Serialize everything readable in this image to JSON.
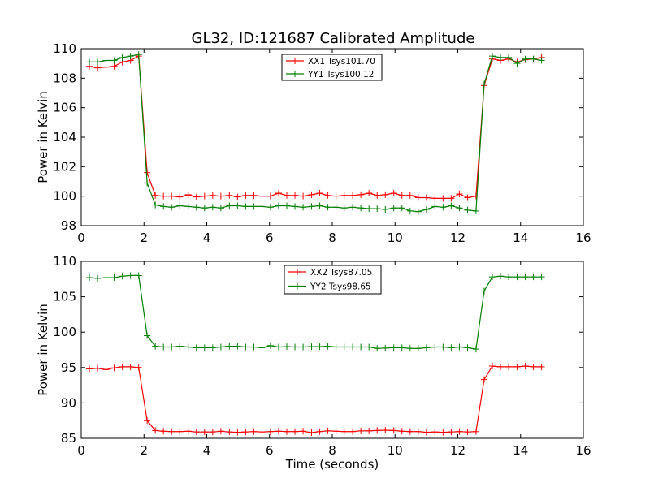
{
  "figure": {
    "title": "GL32, ID:121687 Calibrated Amplitude"
  },
  "chart_data": [
    {
      "type": "line",
      "title": "GL32, ID:121687 Calibrated Amplitude",
      "xlabel": "",
      "ylabel": "Power in Kelvin",
      "xlim": [
        0,
        16
      ],
      "ylim": [
        98,
        110
      ],
      "xticks": [
        "0",
        "2",
        "4",
        "6",
        "8",
        "10",
        "12",
        "14",
        "16"
      ],
      "yticks": [
        "98",
        "100",
        "102",
        "104",
        "106",
        "108",
        "110"
      ],
      "grid": false,
      "legend_position": "top-center",
      "x": [
        0.26,
        0.52,
        0.79,
        1.05,
        1.31,
        1.57,
        1.83,
        2.1,
        2.36,
        2.62,
        2.88,
        3.14,
        3.41,
        3.67,
        3.93,
        4.19,
        4.45,
        4.72,
        4.98,
        5.24,
        5.5,
        5.76,
        6.03,
        6.29,
        6.55,
        6.81,
        7.07,
        7.34,
        7.6,
        7.86,
        8.12,
        8.38,
        8.65,
        8.91,
        9.17,
        9.43,
        9.69,
        9.96,
        10.22,
        10.48,
        10.74,
        11.0,
        11.27,
        11.53,
        11.79,
        12.05,
        12.31,
        12.58,
        12.84,
        13.1,
        13.36,
        13.62,
        13.89,
        14.15,
        14.41,
        14.67
      ],
      "series": [
        {
          "name": "XX1 Tsys101.70",
          "color": "#ff0000",
          "values": [
            108.8,
            108.7,
            108.75,
            108.8,
            109.1,
            109.2,
            109.5,
            101.6,
            100.05,
            100.0,
            100.0,
            99.95,
            100.1,
            99.95,
            100.0,
            100.05,
            100.0,
            100.05,
            99.95,
            100.05,
            100.05,
            100.0,
            100.0,
            100.2,
            100.05,
            100.05,
            100.0,
            100.1,
            100.2,
            100.05,
            100.0,
            100.05,
            100.05,
            100.1,
            100.2,
            100.05,
            100.1,
            100.2,
            100.05,
            100.05,
            99.9,
            99.9,
            99.85,
            99.85,
            99.85,
            100.15,
            99.9,
            100.0,
            107.5,
            109.3,
            109.2,
            109.3,
            109.1,
            109.25,
            109.3,
            109.4
          ]
        },
        {
          "name": "YY1 Tsys100.12",
          "color": "#008000",
          "values": [
            109.1,
            109.1,
            109.2,
            109.2,
            109.4,
            109.5,
            109.6,
            100.9,
            99.4,
            99.3,
            99.25,
            99.35,
            99.3,
            99.25,
            99.2,
            99.25,
            99.2,
            99.35,
            99.35,
            99.3,
            99.3,
            99.3,
            99.25,
            99.35,
            99.35,
            99.3,
            99.25,
            99.3,
            99.35,
            99.25,
            99.25,
            99.2,
            99.25,
            99.2,
            99.15,
            99.15,
            99.1,
            99.2,
            99.2,
            99.0,
            98.95,
            99.1,
            99.3,
            99.25,
            99.35,
            99.2,
            99.05,
            99.0,
            107.6,
            109.5,
            109.4,
            109.4,
            109.0,
            109.3,
            109.3,
            109.2
          ]
        }
      ]
    },
    {
      "type": "line",
      "title": "",
      "xlabel": "Time (seconds)",
      "ylabel": "Power in Kelvin",
      "xlim": [
        0,
        16
      ],
      "ylim": [
        85,
        110
      ],
      "xticks": [
        "0",
        "2",
        "4",
        "6",
        "8",
        "10",
        "12",
        "14",
        "16"
      ],
      "yticks": [
        "85",
        "90",
        "95",
        "100",
        "105",
        "110"
      ],
      "grid": false,
      "legend_position": "top-center",
      "x": [
        0.26,
        0.52,
        0.79,
        1.05,
        1.31,
        1.57,
        1.83,
        2.1,
        2.36,
        2.62,
        2.88,
        3.14,
        3.41,
        3.67,
        3.93,
        4.19,
        4.45,
        4.72,
        4.98,
        5.24,
        5.5,
        5.76,
        6.03,
        6.29,
        6.55,
        6.81,
        7.07,
        7.34,
        7.6,
        7.86,
        8.12,
        8.38,
        8.65,
        8.91,
        9.17,
        9.43,
        9.69,
        9.96,
        10.22,
        10.48,
        10.74,
        11.0,
        11.27,
        11.53,
        11.79,
        12.05,
        12.31,
        12.58,
        12.84,
        13.1,
        13.36,
        13.62,
        13.89,
        14.15,
        14.41,
        14.67
      ],
      "series": [
        {
          "name": "XX2 Tsys87.05",
          "color": "#ff0000",
          "values": [
            94.8,
            94.9,
            94.7,
            94.95,
            95.1,
            95.1,
            95.0,
            87.5,
            86.1,
            86.0,
            85.95,
            85.95,
            86.0,
            85.9,
            85.9,
            85.9,
            86.0,
            85.9,
            85.85,
            85.9,
            85.95,
            85.9,
            85.95,
            86.0,
            85.95,
            85.95,
            86.0,
            85.8,
            85.95,
            86.05,
            86.0,
            85.95,
            85.95,
            86.05,
            86.05,
            86.1,
            86.15,
            86.1,
            86.0,
            85.95,
            85.95,
            85.85,
            85.9,
            85.85,
            85.9,
            85.95,
            85.9,
            85.95,
            93.3,
            95.2,
            95.1,
            95.1,
            95.1,
            95.2,
            95.1,
            95.1
          ]
        },
        {
          "name": "YY2 Tsys98.65",
          "color": "#008000",
          "values": [
            107.7,
            107.6,
            107.7,
            107.7,
            107.9,
            108.0,
            108.0,
            99.5,
            98.0,
            97.9,
            97.9,
            98.0,
            97.9,
            97.8,
            97.8,
            97.8,
            97.9,
            98.0,
            98.0,
            97.9,
            97.9,
            97.8,
            98.1,
            97.9,
            97.95,
            97.9,
            97.9,
            97.95,
            97.95,
            98.0,
            97.9,
            97.9,
            97.9,
            97.9,
            97.9,
            97.7,
            97.75,
            97.8,
            97.8,
            97.7,
            97.7,
            97.8,
            97.9,
            97.9,
            97.8,
            97.9,
            97.8,
            97.6,
            105.8,
            107.8,
            107.9,
            107.8,
            107.8,
            107.8,
            107.8,
            107.8
          ]
        }
      ]
    }
  ]
}
